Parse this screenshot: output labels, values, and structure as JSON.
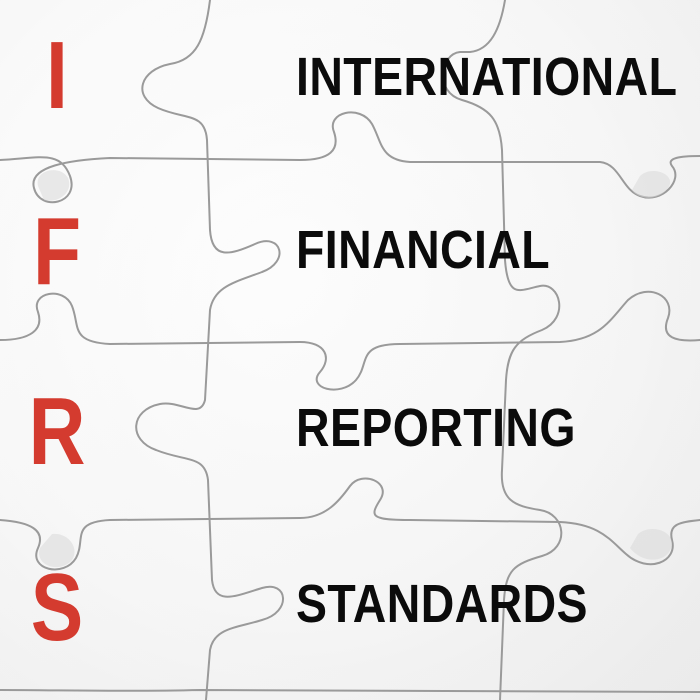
{
  "image": {
    "acronym": {
      "letters": [
        "I",
        "F",
        "R",
        "S"
      ],
      "color": "#d43b2f"
    },
    "words": [
      "INTERNATIONAL",
      "FINANCIAL",
      "REPORTING",
      "STANDARDS"
    ],
    "word_color": "#0b0b0b",
    "background": "white jigsaw puzzle pieces"
  }
}
